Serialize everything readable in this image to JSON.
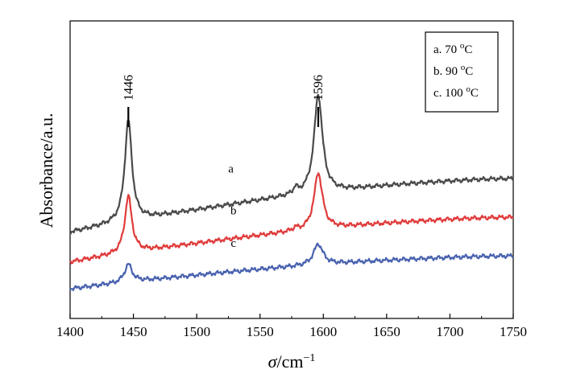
{
  "chart_data": {
    "type": "line",
    "title": "",
    "xlabel_symbol": "σ",
    "xlabel_unit": "/cm",
    "xlabel_exp": "−1",
    "ylabel": "Absorbance/a.u.",
    "xlim": [
      1400,
      1750
    ],
    "ylim": [
      0,
      1
    ],
    "xticks": [
      "1400",
      "1450",
      "1500",
      "1550",
      "1600",
      "1650",
      "1700",
      "1750"
    ],
    "grid": false,
    "legend_position": "top-right",
    "legend": [
      {
        "letter": "a",
        "temp": "70",
        "unit": "C"
      },
      {
        "letter": "b",
        "temp": "90",
        "unit": "C"
      },
      {
        "letter": "c",
        "temp": "100",
        "unit": "C"
      }
    ],
    "peaks": [
      {
        "label": "1446",
        "x": 1446
      },
      {
        "label": "1596",
        "x": 1596
      }
    ],
    "series": [
      {
        "name": "a",
        "color": "#4a4a4a",
        "baseline_start": 0.29,
        "baseline_end": 0.47,
        "peaks": [
          {
            "x": 1446,
            "height": 0.34,
            "width": 3.4
          },
          {
            "x": 1596,
            "height": 0.33,
            "width": 4.0
          },
          {
            "x": 1578,
            "height": 0.02,
            "width": 2.0
          }
        ],
        "label_x": 1527,
        "label_y": 0.49
      },
      {
        "name": "b",
        "color": "#e03c3c",
        "baseline_start": 0.19,
        "baseline_end": 0.34,
        "peaks": [
          {
            "x": 1446,
            "height": 0.19,
            "width": 3.4
          },
          {
            "x": 1596,
            "height": 0.19,
            "width": 4.0
          },
          {
            "x": 1578,
            "height": 0.01,
            "width": 2.0
          }
        ],
        "label_x": 1529,
        "label_y": 0.35
      },
      {
        "name": "c",
        "color": "#4a63b0",
        "baseline_start": 0.1,
        "baseline_end": 0.21,
        "peaks": [
          {
            "x": 1446,
            "height": 0.06,
            "width": 3.6
          },
          {
            "x": 1596,
            "height": 0.07,
            "width": 4.5
          }
        ],
        "label_x": 1529,
        "label_y": 0.24
      }
    ]
  }
}
